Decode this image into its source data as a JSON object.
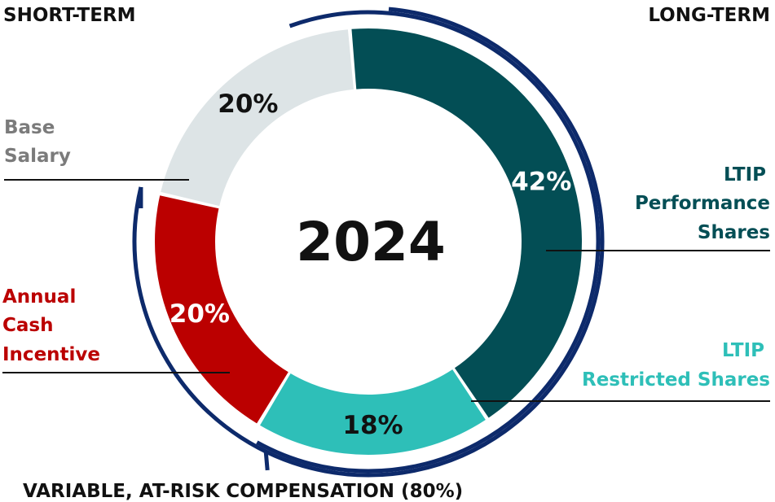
{
  "headers": {
    "short_term": "SHORT-TERM",
    "long_term": "LONG-TERM"
  },
  "footer": "VARIABLE, AT-RISK COMPENSATION (80%)",
  "colors": {
    "base_salary": "#dde4e6",
    "annual_cash": "#bb0000",
    "ltip_restricted": "#2ebfb8",
    "ltip_performance": "#034e55",
    "bracket": "#0d2a6b",
    "label_base": "#7b7b7b",
    "label_cash": "#bb0000",
    "label_restricted": "#2ebfb8",
    "label_performance": "#034e55"
  },
  "chart_data": {
    "type": "pie",
    "title": "2024",
    "start_angle_deg": -5,
    "direction": "clockwise",
    "slices": [
      {
        "key": "ltip_performance",
        "name": "LTIP Performance Shares",
        "value": 42,
        "display": "42%",
        "pct_color": "#ffffff",
        "label_lines": [
          "LTIP",
          "Performance",
          "Shares"
        ]
      },
      {
        "key": "ltip_restricted",
        "name": "LTIP Restricted Shares",
        "value": 18,
        "display": "18%",
        "pct_color": "#111111",
        "label_lines": [
          "LTIP",
          "Restricted Shares"
        ]
      },
      {
        "key": "annual_cash",
        "name": "Annual Cash Incentive",
        "value": 20,
        "display": "20%",
        "pct_color": "#ffffff",
        "label_lines": [
          "Annual",
          "Cash",
          "Incentive"
        ]
      },
      {
        "key": "base_salary",
        "name": "Base Salary",
        "value": 20,
        "display": "20%",
        "pct_color": "#111111",
        "label_lines": [
          "Base",
          "Salary"
        ]
      }
    ],
    "brackets": [
      {
        "name": "long-term",
        "covers": [
          "ltip_performance",
          "ltip_restricted"
        ]
      },
      {
        "name": "variable-at-risk",
        "covers": [
          "ltip_performance",
          "ltip_restricted",
          "annual_cash"
        ],
        "total_percent": 80
      }
    ]
  }
}
